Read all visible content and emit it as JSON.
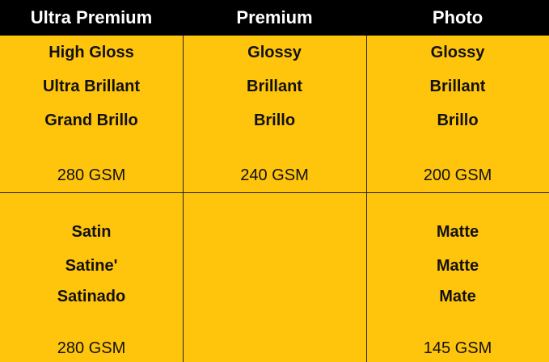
{
  "colors": {
    "header_bg": "#000000",
    "body_bg": "#FFC40C",
    "header_text": "#FFFFFF"
  },
  "headers": [
    "Ultra Premium",
    "Premium",
    "Photo"
  ],
  "rows": [
    [
      {
        "names": [
          "High Gloss",
          "Ultra Brillant",
          "Grand Brillo"
        ],
        "weight": "280 GSM"
      },
      {
        "names": [
          "Glossy",
          "Brillant",
          "Brillo"
        ],
        "weight": "240 GSM"
      },
      {
        "names": [
          "Glossy",
          "Brillant",
          "Brillo"
        ],
        "weight": "200 GSM"
      }
    ],
    [
      {
        "names": [
          "Satin",
          "Satine'",
          "Satinado"
        ],
        "weight": "280 GSM"
      },
      {
        "names": [],
        "weight": ""
      },
      {
        "names": [
          "Matte",
          "Matte",
          "Mate"
        ],
        "weight": "145 GSM"
      }
    ]
  ]
}
